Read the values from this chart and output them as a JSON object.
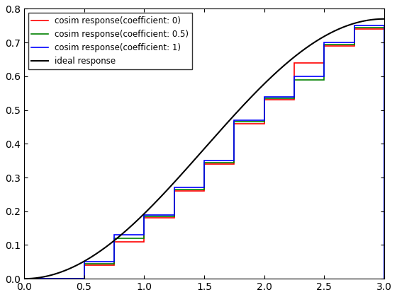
{
  "title": "",
  "xlim": [
    0,
    3
  ],
  "ylim": [
    0,
    0.8
  ],
  "xticks": [
    0,
    0.5,
    1.0,
    1.5,
    2.0,
    2.5,
    3.0
  ],
  "yticks": [
    0,
    0.1,
    0.2,
    0.3,
    0.4,
    0.5,
    0.6,
    0.7,
    0.8
  ],
  "step_edges": [
    0.0,
    0.5,
    0.75,
    1.0,
    1.25,
    1.5,
    1.75,
    2.0,
    2.25,
    2.5,
    2.75,
    3.0
  ],
  "values_coeff0": [
    0.0,
    0.04,
    0.11,
    0.18,
    0.26,
    0.34,
    0.46,
    0.53,
    0.64,
    0.69,
    0.74
  ],
  "values_coeff05": [
    0.0,
    0.045,
    0.12,
    0.185,
    0.265,
    0.345,
    0.465,
    0.535,
    0.59,
    0.695,
    0.745
  ],
  "values_coeff1": [
    0.0,
    0.05,
    0.13,
    0.19,
    0.27,
    0.35,
    0.47,
    0.54,
    0.6,
    0.7,
    0.75
  ],
  "colors": [
    "red",
    "green",
    "blue",
    "black"
  ],
  "labels": [
    "cosim response(coefficient: 0)",
    "cosim response(coefficient: 0.5)",
    "cosim response(coefficient: 1)",
    "ideal response"
  ],
  "ideal_scale": 0.77,
  "ideal_freq": 0.5235987755982988,
  "background_color": "#ffffff"
}
